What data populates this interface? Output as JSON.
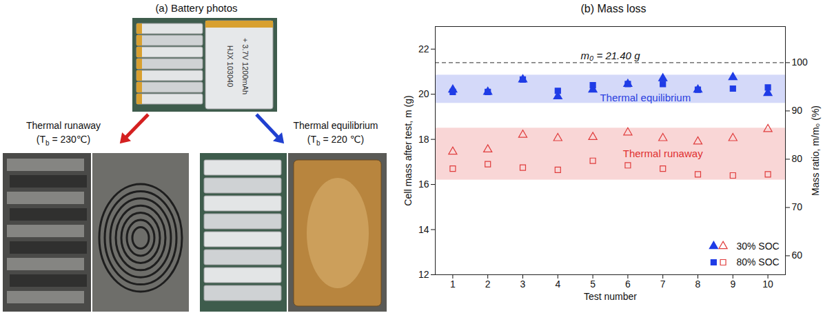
{
  "photo_panel": {
    "title": "(a) Battery photos",
    "cell_label": [
      "HJX 103040",
      "+ 3.7V 1200mAh"
    ],
    "outcomes": [
      {
        "label": "Thermal runaway",
        "condition": {
          "prefix": "(T",
          "sub": "b",
          "suffix": " = 230℃)"
        },
        "color": "#d42020"
      },
      {
        "label": "Thermal equilibrium",
        "condition": {
          "prefix": "(T",
          "sub": "b",
          "suffix": " = 220 ℃)"
        },
        "color": "#2040d0"
      }
    ]
  },
  "chart_data": {
    "type": "scatter",
    "title": "(b) Mass loss",
    "x_label": "Test number",
    "y_label": "Cell mass after test, m (g)",
    "y2_label": "Mass ratio, m/m₀ (%)",
    "x": [
      1,
      2,
      3,
      4,
      5,
      6,
      7,
      8,
      9,
      10
    ],
    "xlim": [
      0.5,
      10.5
    ],
    "xticks": [
      1,
      2,
      3,
      4,
      5,
      6,
      7,
      8,
      9,
      10
    ],
    "ylim": [
      12,
      23
    ],
    "yticks": [
      12,
      14,
      16,
      18,
      20,
      22
    ],
    "y2lim": [
      56.07,
      107.48
    ],
    "y2ticks": [
      60,
      70,
      80,
      90,
      100
    ],
    "reference_line": {
      "value": 21.4,
      "label": "m₀ = 21.40 g"
    },
    "bands": [
      {
        "label": "Thermal equilibrium",
        "y1": 19.6,
        "y2": 20.85,
        "color": "#2a40e0"
      },
      {
        "label": "Thermal runaway",
        "y1": 16.2,
        "y2": 18.5,
        "color": "#e03030"
      }
    ],
    "series": [
      {
        "name": "30% SOC",
        "color": "#1f3ce6",
        "marker": "triangle",
        "values": [
          20.2,
          20.1,
          20.65,
          19.9,
          20.2,
          20.45,
          20.7,
          20.2,
          20.75,
          20.05
        ]
      },
      {
        "name": "80% SOC",
        "color": "#1f3ce6",
        "marker": "square",
        "values": [
          20.1,
          20.1,
          20.65,
          20.15,
          20.4,
          20.45,
          20.45,
          20.2,
          20.25,
          20.3
        ]
      },
      {
        "name": "30% SOC",
        "color": "#e03c3c",
        "marker": "triangle-open",
        "values": [
          17.45,
          17.55,
          18.2,
          18.05,
          18.1,
          18.3,
          18.05,
          17.9,
          18.05,
          18.45
        ]
      },
      {
        "name": "80% SOC",
        "color": "#e03c3c",
        "marker": "square-open",
        "values": [
          16.7,
          16.9,
          16.75,
          16.65,
          17.05,
          16.85,
          16.7,
          16.45,
          16.4,
          16.45
        ]
      }
    ],
    "legend": "lower right",
    "grid": false
  }
}
